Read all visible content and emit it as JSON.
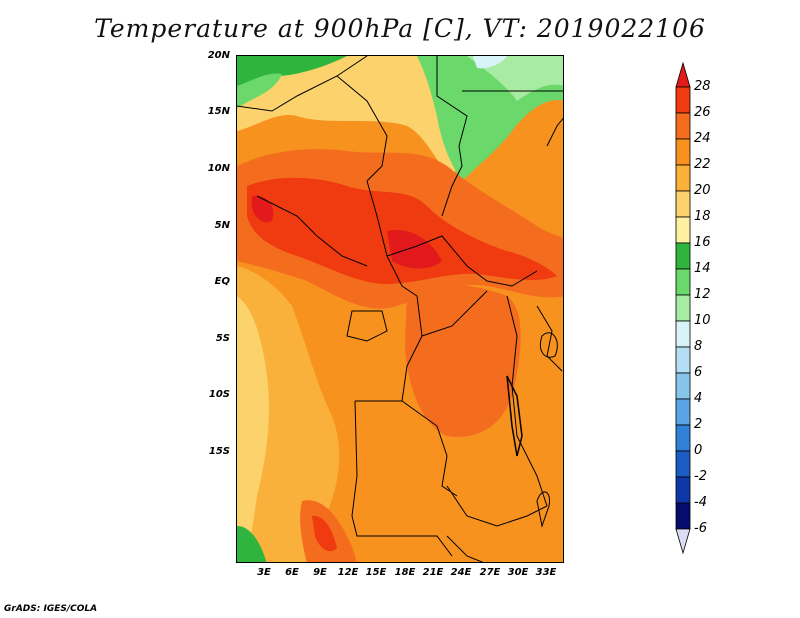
{
  "title": "Temperature at 900hPa [C], VT: 2019022106",
  "lat_labels": [
    "20N",
    "15N",
    "10N",
    "5N",
    "EQ",
    "5S",
    "10S",
    "15S"
  ],
  "lon_labels": [
    "3E",
    "6E",
    "9E",
    "12E",
    "15E",
    "18E",
    "21E",
    "24E",
    "27E",
    "30E",
    "33E"
  ],
  "colorbar": {
    "labels": [
      "28",
      "26",
      "24",
      "22",
      "20",
      "18",
      "16",
      "14",
      "12",
      "10",
      "8",
      "6",
      "4",
      "2",
      "0",
      "-2",
      "-4",
      "-6"
    ],
    "colors": [
      "#e31a1c",
      "#f03b10",
      "#f46d1f",
      "#f7921f",
      "#f9b13b",
      "#fbd26b",
      "#fdf0a0",
      "#2fb43d",
      "#6ad86a",
      "#a8eca4",
      "#d8f4f8",
      "#b4def4",
      "#86c4ec",
      "#5aa4e4",
      "#3080d8",
      "#1a5cc4",
      "#0e38a8",
      "#060c6c",
      "#dcdcf4"
    ]
  },
  "credit": "GrADS: IGES/COLA"
}
